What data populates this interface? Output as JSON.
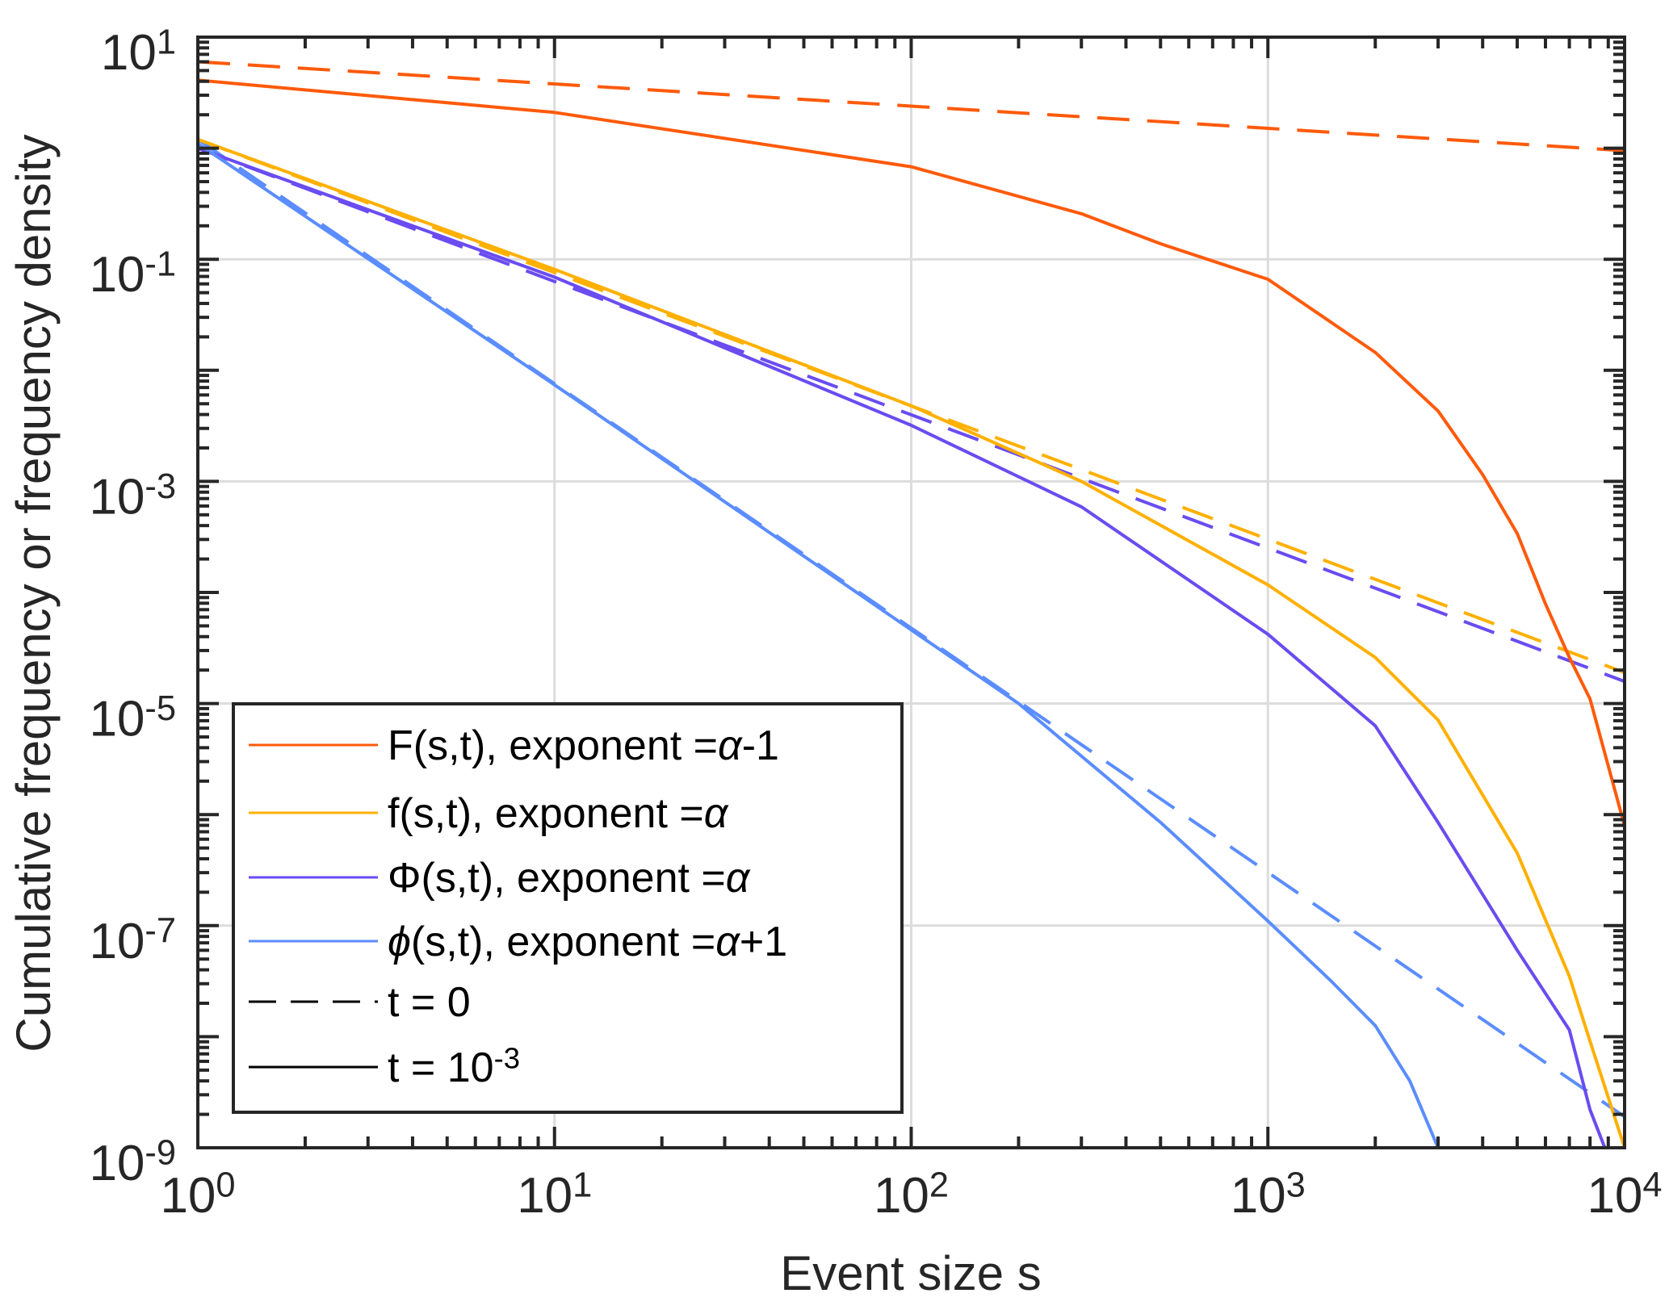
{
  "chart_data": {
    "type": "line",
    "title": "",
    "xlabel": "Event size s",
    "ylabel": "Cumulative frequency or frequency density",
    "xscale": "log",
    "yscale": "log",
    "xlim": [
      1,
      10000
    ],
    "ylim": [
      1e-09,
      10
    ],
    "x_tick_labels": [
      "10^0",
      "10^1",
      "10^2",
      "10^3",
      "10^4"
    ],
    "y_tick_labels": [
      "10^1",
      "10^-1",
      "10^-3",
      "10^-5",
      "10^-7",
      "10^-9"
    ],
    "grid": true,
    "legend_position": "bottom-left",
    "colors": {
      "F": "#ff5a0a",
      "f": "#ffb000",
      "Phi": "#6a4cf0",
      "phi": "#5b8dff",
      "axis": "#262626",
      "grid": "#dcdcdc"
    },
    "legend": [
      {
        "label": "F(s,t), exponent =α-1",
        "color_key": "F",
        "style": "solid"
      },
      {
        "label": "f(s,t), exponent =α",
        "color_key": "f",
        "style": "solid"
      },
      {
        "label": "Φ(s,t), exponent =α",
        "color_key": "Phi",
        "style": "solid"
      },
      {
        "label": "ϕ(s,t), exponent =α+1",
        "color_key": "phi",
        "style": "solid"
      },
      {
        "label": "t = 0",
        "color_key": "black",
        "style": "dashed"
      },
      {
        "label": "t = 10^-3",
        "color_key": "black",
        "style": "solid"
      }
    ],
    "series": [
      {
        "name": "F(s,t), t=0",
        "color_key": "F",
        "style": "dashed",
        "x": [
          1,
          10,
          100,
          1000,
          10000
        ],
        "y": [
          6.0,
          3.79,
          2.39,
          1.51,
          0.95
        ]
      },
      {
        "name": "f(s,t), t=0",
        "color_key": "f",
        "style": "dashed",
        "x": [
          1,
          10,
          100,
          1000,
          10000
        ],
        "y": [
          1.2,
          0.0757,
          0.00478,
          0.000301,
          1.9e-05
        ]
      },
      {
        "name": "Φ(s,t), t=0",
        "color_key": "Phi",
        "style": "dashed",
        "x": [
          1,
          10,
          100,
          1000,
          10000
        ],
        "y": [
          1.0,
          0.0631,
          0.00398,
          0.000251,
          1.58e-05
        ]
      },
      {
        "name": "ϕ(s,t), t=0",
        "color_key": "phi",
        "style": "dashed",
        "x": [
          1,
          10,
          100,
          1000,
          10000
        ],
        "y": [
          1.2,
          0.00757,
          4.78e-05,
          3.01e-07,
          1.9e-09
        ]
      },
      {
        "name": "F(s,t), t=1e-3",
        "color_key": "F",
        "style": "solid",
        "x": [
          1,
          10,
          100,
          300,
          500,
          1000,
          2000,
          3000,
          4000,
          5000,
          6000,
          7000,
          8000,
          10000
        ],
        "y": [
          4.1,
          2.1,
          0.68,
          0.257,
          0.138,
          0.066,
          0.0145,
          0.0043,
          0.00115,
          0.00034,
          7.9e-05,
          2.6e-05,
          1.1e-05,
          7.9e-07
        ]
      },
      {
        "name": "f(s,t), t=1e-3",
        "color_key": "f",
        "style": "solid",
        "x": [
          1,
          10,
          100,
          300,
          1000,
          2000,
          3000,
          5000,
          7000,
          8000,
          10000
        ],
        "y": [
          1.2,
          0.081,
          0.0048,
          0.001,
          0.000117,
          2.6e-05,
          7.1e-06,
          4.5e-07,
          3.5e-08,
          9.1e-09,
          1e-09
        ]
      },
      {
        "name": "Φ(s,t), t=1e-3",
        "color_key": "Phi",
        "style": "solid",
        "x": [
          1,
          10,
          100,
          300,
          1000,
          2000,
          3000,
          5000,
          7000,
          8000,
          8800
        ],
        "y": [
          1.0,
          0.069,
          0.0032,
          0.00059,
          4.2e-05,
          6.3e-06,
          8.5e-07,
          6e-08,
          1.15e-08,
          2.2e-09,
          1e-09
        ]
      },
      {
        "name": "ϕ(s,t), t=1e-3",
        "color_key": "phi",
        "style": "solid",
        "x": [
          1,
          10,
          100,
          200,
          500,
          1000,
          1500,
          2000,
          2500,
          3000
        ],
        "y": [
          1.1,
          0.0074,
          4.6e-05,
          1e-05,
          8.5e-07,
          1.1e-07,
          3.2e-08,
          1.26e-08,
          4e-09,
          1e-09
        ]
      }
    ]
  }
}
